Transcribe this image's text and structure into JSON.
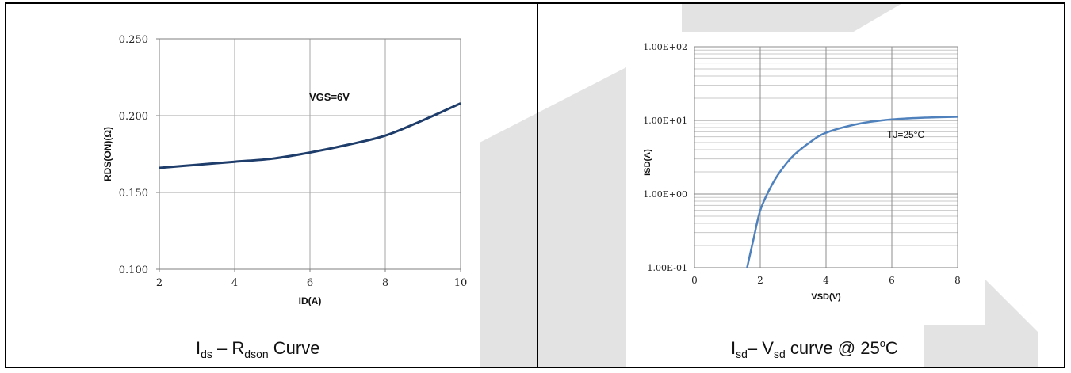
{
  "chart_data": [
    {
      "type": "line",
      "xlabel": "ID(A)",
      "ylabel": "RDS(ON)(Ω)",
      "xlim": [
        2,
        10
      ],
      "ylim": [
        0.1,
        0.25
      ],
      "x_ticks": [
        "2",
        "4",
        "6",
        "8",
        "10"
      ],
      "y_ticks": [
        "0.100",
        "0.150",
        "0.200",
        "0.250"
      ],
      "annotation": "VGS=6V",
      "grid": true,
      "line_color": "#1f3d6b",
      "series": [
        {
          "x": [
            2,
            3,
            4,
            5,
            6,
            7,
            8,
            9,
            10
          ],
          "y": [
            0.166,
            0.168,
            0.17,
            0.172,
            0.176,
            0.181,
            0.187,
            0.197,
            0.208
          ]
        }
      ]
    },
    {
      "type": "line",
      "xlabel": "VSD(V)",
      "ylabel": "ISD(A)",
      "xlim": [
        0,
        8
      ],
      "ylim": [
        0.1,
        100
      ],
      "yscale": "log",
      "x_ticks": [
        "0",
        "2",
        "4",
        "6",
        "8"
      ],
      "y_ticks": [
        "1.00E-01",
        "1.00E+00",
        "1.00E+01",
        "1.00E+02"
      ],
      "annotation": "TJ=25°C",
      "grid": true,
      "line_color": "#4f81bd",
      "series": [
        {
          "x": [
            1.6,
            1.8,
            2.0,
            2.3,
            2.6,
            3.0,
            3.5,
            4.0,
            5.0,
            6.0,
            7.0,
            8.0
          ],
          "y": [
            0.1,
            0.25,
            0.6,
            1.2,
            2.0,
            3.3,
            5.0,
            6.8,
            9.0,
            10.3,
            10.9,
            11.2
          ]
        }
      ]
    }
  ],
  "captions": {
    "left": {
      "p1": "I",
      "s1": "ds",
      "p2": " – R",
      "s2": "dson",
      "p3": " Curve"
    },
    "right": {
      "p1": "I",
      "s1": "sd",
      "p2": "– V",
      "s2": "sd",
      "p3": " curve @ 25",
      "sup": "o",
      "p4": "C"
    }
  },
  "colors": {
    "watermark": "#e3e3e3",
    "grid": "#a6a6a6",
    "frame": "#000000"
  }
}
